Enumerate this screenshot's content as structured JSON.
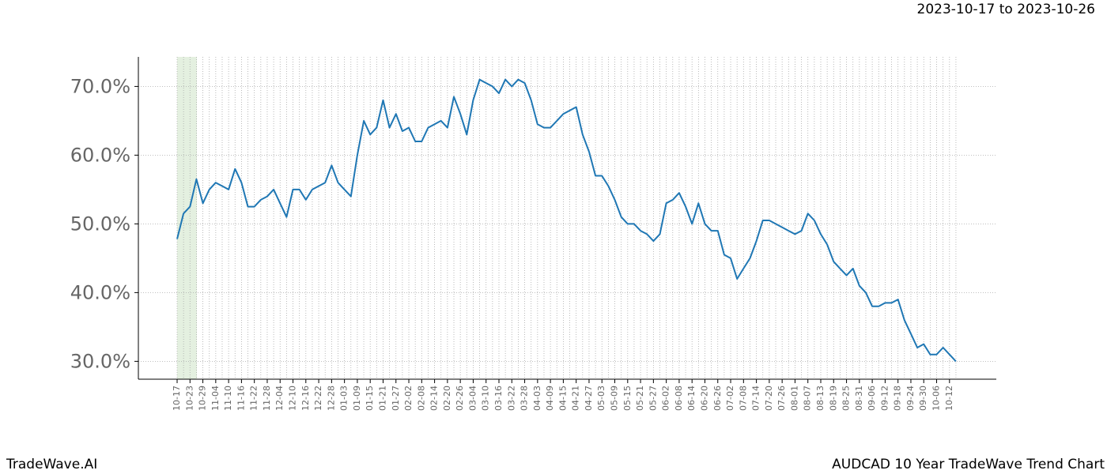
{
  "brand": "TradeWave.AI",
  "chart_data": {
    "type": "line",
    "title": "AUDCAD 10 Year TradeWave Trend Chart",
    "subtitle": "2023-10-17 to 2023-10-26",
    "categories": [
      "10-17",
      null,
      "10-23",
      null,
      "10-29",
      null,
      "11-04",
      null,
      "11-10",
      null,
      "11-16",
      null,
      "11-22",
      null,
      "11-28",
      null,
      "12-04",
      null,
      "12-10",
      null,
      "12-16",
      null,
      "12-22",
      null,
      "12-28",
      null,
      "01-03",
      null,
      "01-09",
      null,
      "01-15",
      null,
      "01-21",
      null,
      "01-27",
      null,
      "02-02",
      null,
      "02-08",
      null,
      "02-14",
      null,
      "02-20",
      null,
      "02-26",
      null,
      "03-04",
      null,
      "03-10",
      null,
      "03-16",
      null,
      "03-22",
      null,
      "03-28",
      null,
      "04-03",
      null,
      "04-09",
      null,
      "04-15",
      null,
      "04-21",
      null,
      "04-27",
      null,
      "05-03",
      null,
      "05-09",
      null,
      "05-15",
      null,
      "05-21",
      null,
      "05-27",
      null,
      "06-02",
      null,
      "06-08",
      null,
      "06-14",
      null,
      "06-20",
      null,
      "06-26",
      null,
      "07-02",
      null,
      "07-08",
      null,
      "07-14",
      null,
      "07-20",
      null,
      "07-26",
      null,
      "08-01",
      null,
      "08-07",
      null,
      "08-13",
      null,
      "08-19",
      null,
      "08-25",
      null,
      "08-31",
      null,
      "09-06",
      null,
      "09-12",
      null,
      "09-18",
      null,
      "09-24",
      null,
      "09-30",
      null,
      "10-06",
      null,
      "10-12",
      null
    ],
    "series": [
      {
        "color": "#1f77b4",
        "values": [
          47.8,
          51.5,
          52.5,
          56.5,
          53,
          55,
          56,
          55.5,
          55,
          58,
          56,
          52.5,
          52.5,
          53.5,
          54,
          55,
          53,
          51,
          55,
          55,
          53.5,
          55,
          55.5,
          56,
          58.5,
          56,
          55,
          54,
          60,
          65,
          63,
          64,
          68,
          64,
          66,
          63.5,
          64,
          62,
          62,
          64,
          64.5,
          65,
          64,
          68.5,
          66,
          63,
          68,
          71,
          70.5,
          70,
          69,
          71,
          70,
          71,
          70.5,
          68,
          64.5,
          64,
          64,
          65,
          66,
          66.5,
          67,
          63,
          60.5,
          57,
          57,
          55.5,
          53.5,
          51,
          50,
          50,
          49,
          48.5,
          47.5,
          48.5,
          53,
          53.5,
          54.5,
          52.5,
          50,
          53,
          50,
          49,
          49,
          45.5,
          45,
          42,
          43.5,
          45,
          47.5,
          50.5,
          50.5,
          50,
          49.5,
          49,
          48.5,
          49,
          51.5,
          50.5,
          48.5,
          47,
          44.5,
          43.5,
          42.5,
          43.5,
          41,
          40,
          38,
          38,
          38.5,
          38.5,
          39,
          36,
          34,
          32,
          32.5,
          31,
          31,
          32,
          31,
          30
        ]
      }
    ],
    "ylim": [
      27.4,
      74.3
    ],
    "yticks": [
      {
        "value": 30,
        "label": "30.0%"
      },
      {
        "value": 40,
        "label": "40.0%"
      },
      {
        "value": 50,
        "label": "50.0%"
      },
      {
        "value": 60,
        "label": "60.0%"
      },
      {
        "value": 70,
        "label": "70.0%"
      }
    ],
    "grid": true
  }
}
